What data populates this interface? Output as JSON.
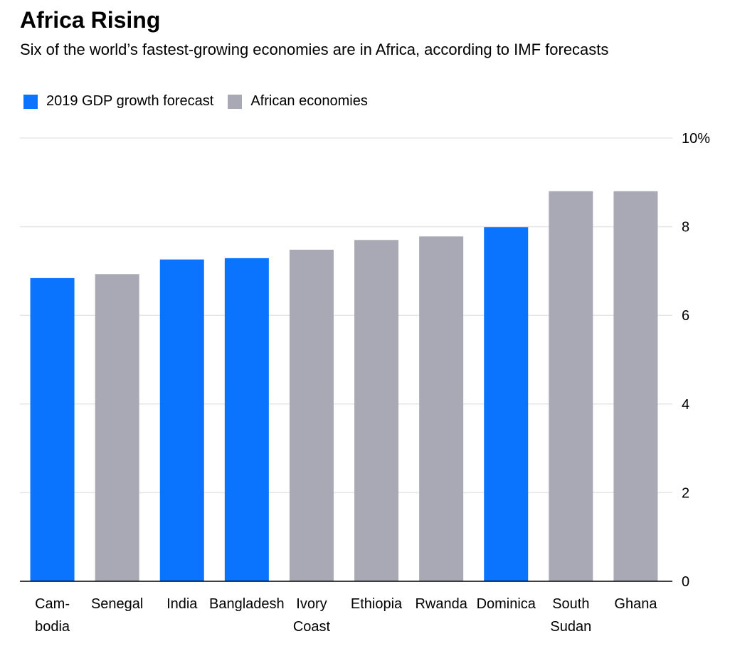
{
  "chart_data": {
    "type": "bar",
    "title": "Africa Rising",
    "subtitle": "Six of the world’s fastest-growing economies are in Africa, according to IMF forecasts",
    "categories": [
      [
        "Cam-",
        "bodia"
      ],
      [
        "Senegal"
      ],
      [
        "India"
      ],
      [
        "Bangladesh"
      ],
      [
        "Ivory",
        "Coast"
      ],
      [
        "Ethiopia"
      ],
      [
        "Rwanda"
      ],
      [
        "Dominica"
      ],
      [
        "South",
        "Sudan"
      ],
      [
        "Ghana"
      ]
    ],
    "series": [
      {
        "name": "2019 GDP growth forecast",
        "color": "#0a74ff",
        "values": [
          6.84,
          null,
          7.26,
          7.29,
          null,
          null,
          null,
          7.99,
          null,
          null
        ]
      },
      {
        "name": "African economies",
        "color": "#a9a9b5",
        "values": [
          null,
          6.93,
          null,
          null,
          7.48,
          7.7,
          7.78,
          null,
          8.8,
          8.8
        ]
      }
    ],
    "ylim": [
      0,
      10
    ],
    "yticks": [
      0,
      2,
      4,
      6,
      8,
      {
        "value": 10,
        "label": "10%"
      }
    ],
    "grid": true
  }
}
